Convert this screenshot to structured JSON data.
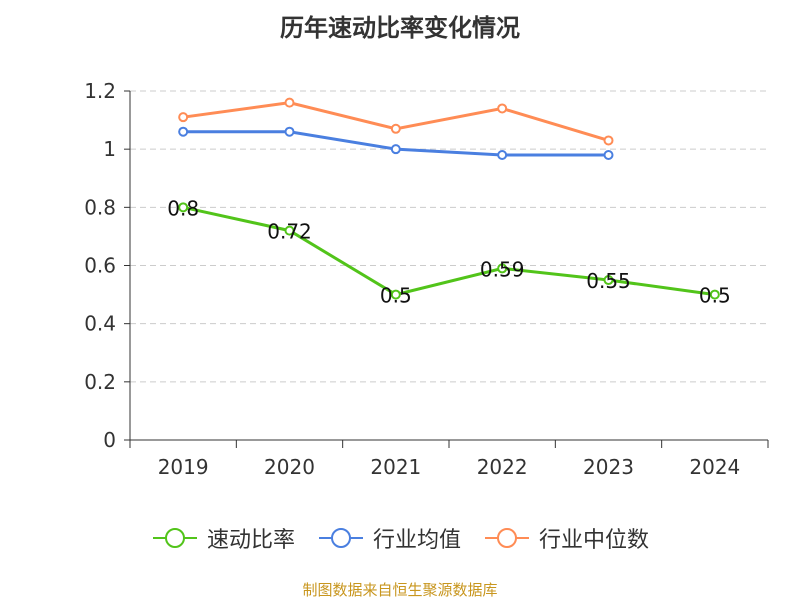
{
  "chart_data": {
    "type": "line",
    "title": "历年速动比率变化情况",
    "categories": [
      "2019",
      "2020",
      "2021",
      "2022",
      "2023",
      "2024"
    ],
    "ylim": [
      0,
      1.2
    ],
    "yticks": [
      0,
      0.2,
      0.4,
      0.6,
      0.8,
      1,
      1.2
    ],
    "ytick_labels": [
      "0",
      "0.2",
      "0.4",
      "0.6",
      "0.8",
      "1",
      "1.2"
    ],
    "grid": true,
    "legend_placement": "bottom",
    "series": [
      {
        "name": "速动比率",
        "color": "#52c41a",
        "values": [
          0.8,
          0.72,
          0.5,
          0.59,
          0.55,
          0.5
        ],
        "labels": [
          "0.8",
          "0.72",
          "0.5",
          "0.59",
          "0.55",
          "0.5"
        ]
      },
      {
        "name": "行业均值",
        "color": "#4a7fe0",
        "values": [
          1.06,
          1.06,
          1.0,
          0.98,
          0.98,
          null
        ]
      },
      {
        "name": "行业中位数",
        "color": "#ff8c55",
        "values": [
          1.11,
          1.16,
          1.07,
          1.14,
          1.03,
          null
        ]
      }
    ]
  },
  "source": "制图数据来自恒生聚源数据库"
}
